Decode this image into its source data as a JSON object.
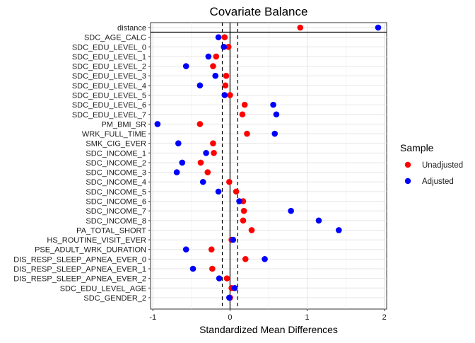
{
  "chart_data": {
    "type": "scatter",
    "title": "Covariate Balance",
    "xlabel": "Standardized Mean Differences",
    "ylabel": "",
    "xlim": [
      -1.03,
      2.03
    ],
    "xticks": [
      "-1",
      "0",
      "1",
      "2"
    ],
    "xtick_values": [
      -1,
      0,
      1,
      2
    ],
    "reference_lines": {
      "solid": [
        0
      ],
      "dashed": [
        -0.1,
        0.1
      ]
    },
    "grid": true,
    "legend": {
      "title": "Sample",
      "position": "right"
    },
    "categories": [
      "distance",
      "SDC_AGE_CALC",
      "SDC_EDU_LEVEL_0",
      "SDC_EDU_LEVEL_1",
      "SDC_EDU_LEVEL_2",
      "SDC_EDU_LEVEL_3",
      "SDC_EDU_LEVEL_4",
      "SDC_EDU_LEVEL_5",
      "SDC_EDU_LEVEL_6",
      "SDC_EDU_LEVEL_7",
      "PM_BMI_SR",
      "WRK_FULL_TIME",
      "SMK_CIG_EVER",
      "SDC_INCOME_1",
      "SDC_INCOME_2",
      "SDC_INCOME_3",
      "SDC_INCOME_4",
      "SDC_INCOME_5",
      "SDC_INCOME_6",
      "SDC_INCOME_7",
      "SDC_INCOME_8",
      "PA_TOTAL_SHORT",
      "HS_ROUTINE_VISIT_EVER",
      "PSE_ADULT_WRK_DURATION",
      "DIS_RESP_SLEEP_APNEA_EVER_0",
      "DIS_RESP_SLEEP_APNEA_EVER_1",
      "DIS_RESP_SLEEP_APNEA_EVER_2",
      "SDC_EDU_LEVEL_AGE",
      "SDC_GENDER_2"
    ],
    "series": [
      {
        "name": "Unadjusted",
        "color": "#ff0000",
        "values": [
          0.91,
          -0.07,
          -0.02,
          -0.18,
          -0.22,
          -0.05,
          -0.06,
          0.0,
          0.19,
          0.16,
          -0.39,
          0.22,
          -0.22,
          -0.21,
          -0.38,
          -0.29,
          -0.01,
          0.08,
          0.17,
          0.18,
          0.17,
          0.28,
          0.02,
          -0.24,
          0.2,
          -0.23,
          -0.04,
          0.02,
          0.0
        ]
      },
      {
        "name": "Adjusted",
        "color": "#0000ff",
        "values": [
          1.92,
          -0.15,
          -0.08,
          -0.28,
          -0.57,
          -0.19,
          -0.39,
          -0.07,
          0.56,
          0.6,
          -0.94,
          0.58,
          -0.67,
          -0.31,
          -0.62,
          -0.69,
          -0.35,
          -0.15,
          0.12,
          0.79,
          1.15,
          1.41,
          0.04,
          -0.57,
          0.45,
          -0.48,
          -0.14,
          0.06,
          -0.01
        ]
      }
    ]
  }
}
